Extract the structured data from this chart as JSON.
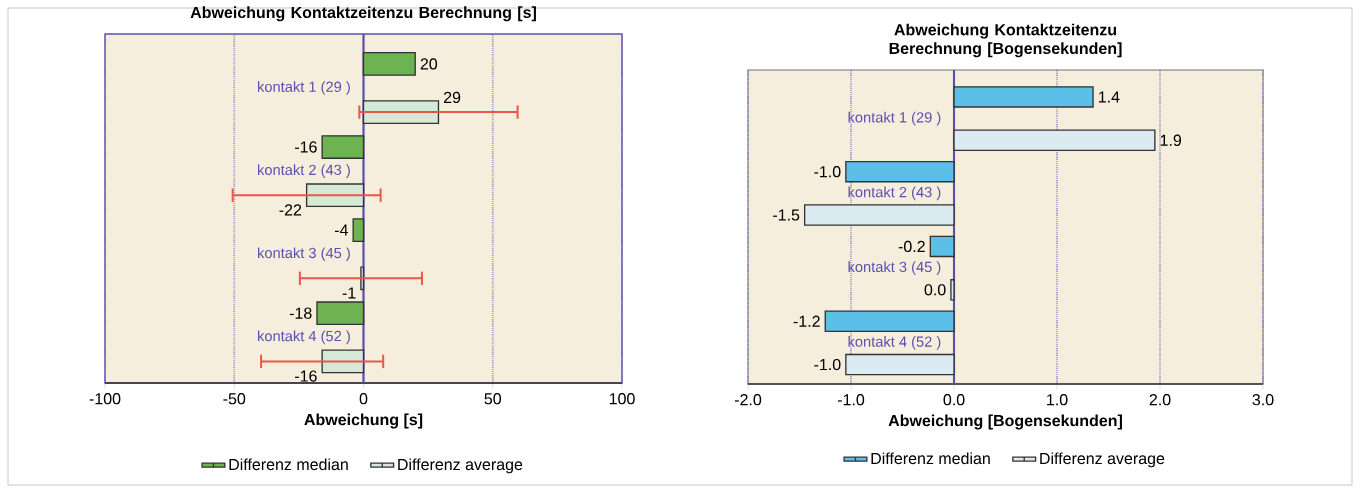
{
  "chart_data": [
    {
      "type": "bar",
      "orientation": "horizontal",
      "title": "Abweichung Kontaktzeitenzu Berechnung [s]",
      "xlabel": "Abweichung [s]",
      "categories": [
        "kontakt 1 (29 )",
        "kontakt 2 (43 )",
        "kontakt 3 (45 )",
        "kontakt 4 (52 )"
      ],
      "series": [
        {
          "name": "Differenz median",
          "color": "#6db352",
          "values": [
            20,
            -16,
            -4,
            -18
          ]
        },
        {
          "name": "Differenz average",
          "color": "#d6e8d6",
          "values": [
            29,
            -22,
            -1,
            -16
          ],
          "errors": [
            [
              -2,
              60
            ],
            [
              -51,
              7
            ],
            [
              -25,
              23
            ],
            [
              -40,
              8
            ]
          ]
        }
      ],
      "xlim": [
        -100,
        100
      ],
      "xticks": [
        -100,
        -50,
        0,
        50,
        100
      ],
      "grid": "x",
      "legend": "bottom",
      "data_labels": true
    },
    {
      "type": "bar",
      "orientation": "horizontal",
      "title": "Abweichung Kontaktzeitenzu Berechnung [Bogensekunden]",
      "xlabel": "Abweichung [Bogensekunden]",
      "categories": [
        "kontakt 1 (29 )",
        "kontakt 2 (43 )",
        "kontakt 3 (45 )",
        "kontakt 4 (52 )"
      ],
      "series": [
        {
          "name": "Differenz median",
          "color": "#5bbfe8",
          "values": [
            1.35,
            -1.05,
            -0.23,
            -1.25
          ],
          "value_labels": [
            "1.4",
            "-1.0",
            "-0.2",
            "-1.2"
          ]
        },
        {
          "name": "Differenz average",
          "color": "#dcebf2",
          "values": [
            1.95,
            -1.45,
            -0.03,
            -1.05
          ],
          "value_labels": [
            "1.9",
            "-1.5",
            "0.0",
            "-1.0"
          ]
        }
      ],
      "xlim": [
        -2,
        3
      ],
      "xticks": [
        {
          "value": -2,
          "label": "-2.0"
        },
        {
          "value": -1,
          "label": "-1.0"
        },
        {
          "value": 0,
          "label": "0.0"
        },
        {
          "value": 1,
          "label": "1.0"
        },
        {
          "value": 2,
          "label": "2.0"
        },
        {
          "value": 3,
          "label": "3.0"
        }
      ],
      "grid": "x",
      "legend": "bottom"
    }
  ]
}
